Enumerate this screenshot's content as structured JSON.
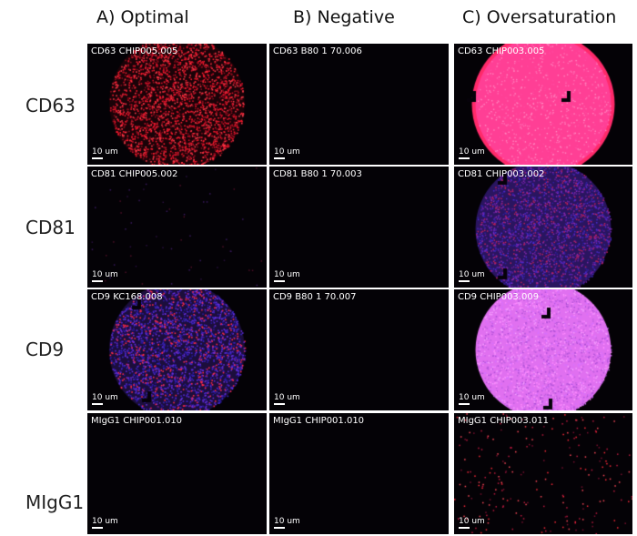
{
  "columns": [
    "A) Optimal",
    "B) Negative",
    "C) Oversaturation"
  ],
  "rows": [
    "CD63",
    "CD81",
    "CD9",
    "MIgG1"
  ],
  "scale_label": "10 um",
  "panels": [
    [
      {
        "label": "CD63 CHIP005.005",
        "style": "red-disc"
      },
      {
        "label": "CD63 B80 1 70.006",
        "style": "dark"
      },
      {
        "label": "CD63 CHIP003.005",
        "style": "pink-disc"
      }
    ],
    [
      {
        "label": "CD81 CHIP005.002",
        "style": "sparse"
      },
      {
        "label": "CD81 B80 1 70.003",
        "style": "dark"
      },
      {
        "label": "CD81 CHIP003.002",
        "style": "blue-disc"
      }
    ],
    [
      {
        "label": "CD9 KC168.008",
        "style": "purple-disc"
      },
      {
        "label": "CD9 B80 1 70.007",
        "style": "dark"
      },
      {
        "label": "CD9 CHIP003.009",
        "style": "magenta-disc"
      }
    ],
    [
      {
        "label": "MIgG1 CHIP001.010",
        "style": "dark"
      },
      {
        "label": "MIgG1 CHIP001.010",
        "style": "dark"
      },
      {
        "label": "MIgG1 CHIP003.011",
        "style": "sparse-red"
      }
    ]
  ]
}
